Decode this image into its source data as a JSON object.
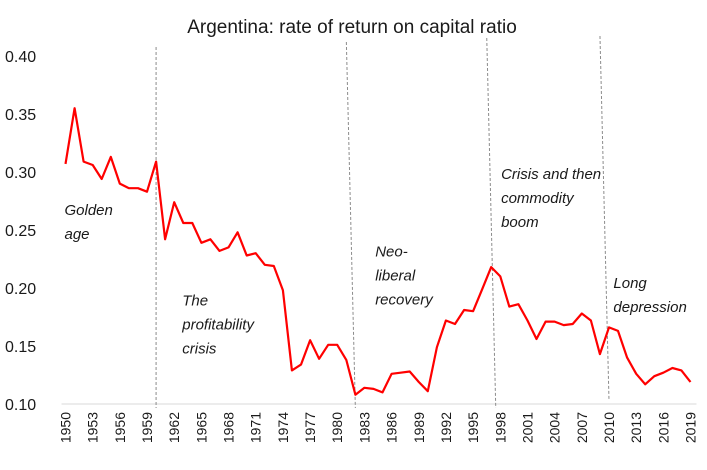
{
  "chart_data": {
    "type": "line",
    "title": "Argentina: rate of return on capital ratio",
    "xlabel": "",
    "ylabel": "",
    "xlim": [
      1950,
      2019
    ],
    "ylim": [
      0.1,
      0.4
    ],
    "grid": false,
    "legend": "none",
    "yticks": [
      "0.10",
      "0.15",
      "0.20",
      "0.25",
      "0.30",
      "0.35",
      "0.40"
    ],
    "ytick_values": [
      0.1,
      0.15,
      0.2,
      0.25,
      0.3,
      0.35,
      0.4
    ],
    "xticks": [
      "1950",
      "1953",
      "1956",
      "1959",
      "1962",
      "1965",
      "1968",
      "1971",
      "1974",
      "1977",
      "1980",
      "1983",
      "1986",
      "1989",
      "1992",
      "1995",
      "1998",
      "2001",
      "2004",
      "2007",
      "2010",
      "2013",
      "2016",
      "2019"
    ],
    "x": [
      1950,
      1951,
      1952,
      1953,
      1954,
      1955,
      1956,
      1957,
      1958,
      1959,
      1960,
      1961,
      1962,
      1963,
      1964,
      1965,
      1966,
      1967,
      1968,
      1969,
      1970,
      1971,
      1972,
      1973,
      1974,
      1975,
      1976,
      1977,
      1978,
      1979,
      1980,
      1981,
      1982,
      1983,
      1984,
      1985,
      1986,
      1987,
      1988,
      1989,
      1990,
      1991,
      1992,
      1993,
      1994,
      1995,
      1996,
      1997,
      1998,
      1999,
      2000,
      2001,
      2002,
      2003,
      2004,
      2005,
      2006,
      2007,
      2008,
      2009,
      2010,
      2011,
      2012,
      2013,
      2014,
      2015,
      2016,
      2017,
      2018,
      2019
    ],
    "series": [
      {
        "name": "Rate of return on capital",
        "color": "#ff0000",
        "values": [
          0.307,
          0.355,
          0.309,
          0.306,
          0.294,
          0.313,
          0.29,
          0.286,
          0.286,
          0.283,
          0.309,
          0.242,
          0.274,
          0.256,
          0.256,
          0.239,
          0.242,
          0.232,
          0.235,
          0.248,
          0.228,
          0.23,
          0.22,
          0.219,
          0.198,
          0.129,
          0.134,
          0.155,
          0.139,
          0.151,
          0.151,
          0.138,
          0.108,
          0.114,
          0.113,
          0.11,
          0.126,
          0.127,
          0.128,
          0.119,
          0.111,
          0.149,
          0.172,
          0.169,
          0.181,
          0.18,
          0.199,
          0.218,
          0.21,
          0.184,
          0.186,
          0.172,
          0.156,
          0.171,
          0.171,
          0.168,
          0.169,
          0.178,
          0.172,
          0.143,
          0.166,
          0.163,
          0.14,
          0.126,
          0.117,
          0.124,
          0.127,
          0.131,
          0.129,
          0.119
        ]
      }
    ],
    "period_dividers": [
      1960,
      1982,
      1997.5,
      2010
    ],
    "annotations": [
      {
        "lines": [
          "Golden",
          "age"
        ],
        "year": 1950,
        "value": 0.263
      },
      {
        "lines": [
          "The",
          "profitability",
          "crisis"
        ],
        "year": 1963,
        "value": 0.185
      },
      {
        "lines": [
          "Neo-",
          "liberal",
          "recovery"
        ],
        "year": 1984.3,
        "value": 0.227
      },
      {
        "lines": [
          "Crisis and then",
          "commodity",
          "boom"
        ],
        "year": 1998.2,
        "value": 0.294
      },
      {
        "lines": [
          "Long",
          "depression"
        ],
        "year": 2010.6,
        "value": 0.2
      }
    ]
  }
}
